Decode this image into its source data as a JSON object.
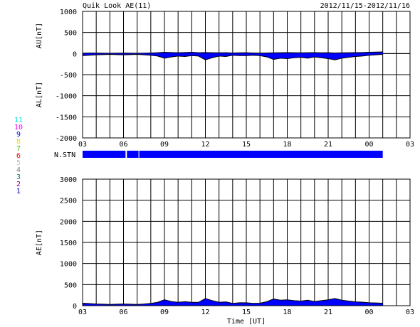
{
  "header": {
    "title": "Quik Look AE(11)",
    "date_range": "2012/11/15-2012/11/16"
  },
  "station_legend": [
    {
      "label": "11",
      "color": "#00e0e0"
    },
    {
      "label": "10",
      "color": "#ff00ff"
    },
    {
      "label": "9",
      "color": "#0000ff"
    },
    {
      "label": "8",
      "color": "#e0e000"
    },
    {
      "label": "7",
      "color": "#40c000"
    },
    {
      "label": "6",
      "color": "#ff0000"
    },
    {
      "label": "5",
      "color": "#c0c0c0"
    },
    {
      "label": "4",
      "color": "#808080"
    },
    {
      "label": "3",
      "color": "#008080"
    },
    {
      "label": "2",
      "color": "#800080"
    },
    {
      "label": "1",
      "color": "#0000c0"
    }
  ],
  "colors": {
    "fill": "#0000ff",
    "line": "#000000",
    "stn_bar": "#0000ff"
  },
  "nstn": {
    "label": "N.STN",
    "coverage_hours": [
      3.0,
      25.0
    ],
    "gaps_hours": [
      6.2,
      7.1
    ]
  },
  "chart_data": [
    {
      "type": "area",
      "panel": "AU/AL",
      "ylabel_top": "AU[nT]",
      "ylabel_bottom": "AL[nT]",
      "ylim": [
        -2000,
        1000
      ],
      "yticks": [
        1000,
        500,
        0,
        -500,
        -1000,
        -1500,
        -2000
      ],
      "xlim": [
        3,
        27
      ],
      "xticks": [
        "03",
        "06",
        "09",
        "12",
        "15",
        "18",
        "21",
        "00",
        "03"
      ],
      "grid": true,
      "series": [
        {
          "name": "AU",
          "x": [
            3.0,
            3.5,
            4.0,
            4.5,
            5.0,
            5.5,
            6.0,
            6.5,
            7.0,
            7.5,
            8.0,
            8.5,
            9.0,
            9.5,
            10.0,
            10.5,
            11.0,
            11.5,
            12.0,
            12.5,
            13.0,
            13.5,
            14.0,
            14.5,
            15.0,
            15.5,
            16.0,
            16.5,
            17.0,
            17.5,
            18.0,
            18.5,
            19.0,
            19.5,
            20.0,
            20.5,
            21.0,
            21.5,
            22.0,
            22.5,
            23.0,
            23.5,
            24.0,
            24.5,
            25.0
          ],
          "values": [
            10,
            15,
            12,
            10,
            8,
            10,
            12,
            10,
            8,
            10,
            15,
            20,
            30,
            25,
            20,
            25,
            30,
            20,
            25,
            20,
            18,
            20,
            15,
            18,
            20,
            15,
            12,
            15,
            18,
            20,
            22,
            20,
            18,
            20,
            22,
            18,
            20,
            15,
            18,
            20,
            22,
            25,
            30,
            35,
            40
          ]
        },
        {
          "name": "AL",
          "x": [
            3.0,
            3.5,
            4.0,
            4.5,
            5.0,
            5.5,
            6.0,
            6.5,
            7.0,
            7.5,
            8.0,
            8.5,
            9.0,
            9.5,
            10.0,
            10.5,
            11.0,
            11.5,
            12.0,
            12.5,
            13.0,
            13.5,
            14.0,
            14.5,
            15.0,
            15.5,
            16.0,
            16.5,
            17.0,
            17.5,
            18.0,
            18.5,
            19.0,
            19.5,
            20.0,
            20.5,
            21.0,
            21.5,
            22.0,
            22.5,
            23.0,
            23.5,
            24.0,
            24.5,
            25.0
          ],
          "values": [
            -50,
            -40,
            -30,
            -25,
            -20,
            -25,
            -30,
            -25,
            -20,
            -30,
            -40,
            -60,
            -110,
            -80,
            -60,
            -70,
            -50,
            -60,
            -150,
            -100,
            -60,
            -70,
            -40,
            -50,
            -50,
            -40,
            -50,
            -80,
            -140,
            -110,
            -120,
            -100,
            -90,
            -110,
            -80,
            -100,
            -120,
            -150,
            -110,
            -90,
            -70,
            -60,
            -40,
            -30,
            -20
          ]
        }
      ]
    },
    {
      "type": "area",
      "panel": "AE",
      "ylabel": "AE[nT]",
      "xlabel": "Time [UT]",
      "ylim": [
        0,
        3000
      ],
      "yticks": [
        3000,
        2500,
        2000,
        1500,
        1000,
        500,
        0
      ],
      "xlim": [
        3,
        27
      ],
      "xticks": [
        "03",
        "06",
        "09",
        "12",
        "15",
        "18",
        "21",
        "00",
        "03"
      ],
      "grid": true,
      "series": [
        {
          "name": "AE",
          "x": [
            3.0,
            3.5,
            4.0,
            4.5,
            5.0,
            5.5,
            6.0,
            6.5,
            7.0,
            7.5,
            8.0,
            8.5,
            9.0,
            9.5,
            10.0,
            10.5,
            11.0,
            11.5,
            12.0,
            12.5,
            13.0,
            13.5,
            14.0,
            14.5,
            15.0,
            15.5,
            16.0,
            16.5,
            17.0,
            17.5,
            18.0,
            18.5,
            19.0,
            19.5,
            20.0,
            20.5,
            21.0,
            21.5,
            22.0,
            22.5,
            23.0,
            23.5,
            24.0,
            24.5,
            25.0
          ],
          "values": [
            60,
            50,
            40,
            35,
            30,
            35,
            40,
            35,
            30,
            40,
            55,
            80,
            140,
            100,
            80,
            95,
            80,
            80,
            170,
            120,
            80,
            90,
            55,
            70,
            70,
            55,
            60,
            95,
            160,
            130,
            140,
            120,
            110,
            130,
            100,
            120,
            140,
            170,
            130,
            110,
            90,
            85,
            70,
            65,
            60
          ]
        }
      ]
    }
  ]
}
